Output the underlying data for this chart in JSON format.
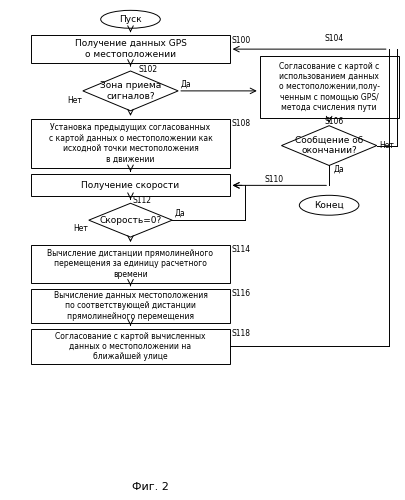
{
  "title": "Фиг. 2",
  "background_color": "#ffffff",
  "fs": 6.5,
  "fs_small": 5.5,
  "fs_title": 8,
  "start_text": "Пуск",
  "end_text": "Конец",
  "r100_text": "Получение данных GPS\nо местоположении",
  "r100_label": "S100",
  "r104_label": "S104",
  "r104_text": "Согласование с картой с\nиспользованием данных\nо местоположении,полу-\nченным с помощью GPS/\nметода счисления пути",
  "d102_text": "Зона приема\nсигналов?",
  "d102_label": "S102",
  "d102_yes": "Да",
  "d102_no": "Нет",
  "r108_text": "Установка предыдущих согласованных\nс картой данных о местоположении как\nисходной точки местоположения\nв движении",
  "r108_label": "S108",
  "r110_text": "Получение скорости",
  "r110_label": "S110",
  "d112_text": "Скорость=0?",
  "d112_label": "S112",
  "d112_yes": "Да",
  "d112_no": "Нет",
  "d106_text": "Сообщение об\nокончании?",
  "d106_label": "S106",
  "d106_yes": "Да",
  "d106_no": "Нет",
  "r114_text": "Вычисление дистанции прямолинейного\nперемещения за единицу расчетного\nвремени",
  "r114_label": "S114",
  "r116_text": "Вычисление данных местоположения\nпо соответствующей дистанции\nпрямолинейного перемещения",
  "r116_label": "S116",
  "r118_text": "Согласование с картой вычисленных\nданных о местоположении на\nближайшей улице",
  "r118_label": "S118"
}
